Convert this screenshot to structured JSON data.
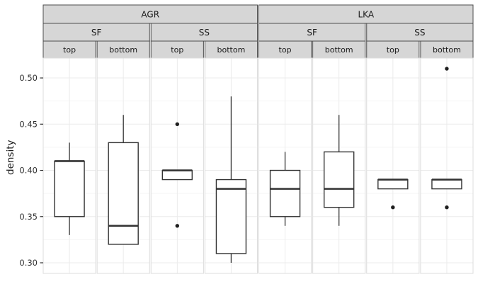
{
  "chart_data": {
    "type": "boxplot",
    "ylabel": "density",
    "ylim": [
      0.2885,
      0.5215
    ],
    "y_ticks": [
      {
        "value": 0.5,
        "label": "0.50"
      },
      {
        "value": 0.45,
        "label": "0.45"
      },
      {
        "value": 0.4,
        "label": "0.40"
      },
      {
        "value": 0.35,
        "label": "0.35"
      },
      {
        "value": 0.3,
        "label": "0.30"
      }
    ],
    "y_minor_ticks": [
      0.325,
      0.375,
      0.425,
      0.475
    ],
    "grid": true,
    "facet_strips": {
      "row1": [
        {
          "label": "AGR",
          "span": 4
        },
        {
          "label": "LKA",
          "span": 4
        }
      ],
      "row2": [
        {
          "label": "SF",
          "span": 2
        },
        {
          "label": "SS",
          "span": 2
        },
        {
          "label": "SF",
          "span": 2
        },
        {
          "label": "SS",
          "span": 2
        }
      ],
      "row3": [
        {
          "label": "top",
          "span": 1
        },
        {
          "label": "bottom",
          "span": 1
        },
        {
          "label": "top",
          "span": 1
        },
        {
          "label": "bottom",
          "span": 1
        },
        {
          "label": "top",
          "span": 1
        },
        {
          "label": "bottom",
          "span": 1
        },
        {
          "label": "top",
          "span": 1
        },
        {
          "label": "bottom",
          "span": 1
        }
      ]
    },
    "panels": [
      {
        "facet1": "AGR",
        "facet2": "SF",
        "facet3": "top",
        "whisker_low": 0.33,
        "q1": 0.35,
        "median": 0.41,
        "q3": 0.41,
        "whisker_high": 0.43,
        "outliers": []
      },
      {
        "facet1": "AGR",
        "facet2": "SF",
        "facet3": "bottom",
        "whisker_low": 0.32,
        "q1": 0.32,
        "median": 0.34,
        "q3": 0.43,
        "whisker_high": 0.46,
        "outliers": []
      },
      {
        "facet1": "AGR",
        "facet2": "SS",
        "facet3": "top",
        "whisker_low": 0.39,
        "q1": 0.39,
        "median": 0.4,
        "q3": 0.4,
        "whisker_high": 0.4,
        "outliers": [
          0.45,
          0.34
        ]
      },
      {
        "facet1": "AGR",
        "facet2": "SS",
        "facet3": "bottom",
        "whisker_low": 0.3,
        "q1": 0.31,
        "median": 0.38,
        "q3": 0.39,
        "whisker_high": 0.48,
        "outliers": []
      },
      {
        "facet1": "LKA",
        "facet2": "SF",
        "facet3": "top",
        "whisker_low": 0.34,
        "q1": 0.35,
        "median": 0.38,
        "q3": 0.4,
        "whisker_high": 0.42,
        "outliers": []
      },
      {
        "facet1": "LKA",
        "facet2": "SF",
        "facet3": "bottom",
        "whisker_low": 0.34,
        "q1": 0.36,
        "median": 0.38,
        "q3": 0.42,
        "whisker_high": 0.46,
        "outliers": []
      },
      {
        "facet1": "LKA",
        "facet2": "SS",
        "facet3": "top",
        "whisker_low": 0.38,
        "q1": 0.38,
        "median": 0.39,
        "q3": 0.39,
        "whisker_high": 0.39,
        "outliers": [
          0.36
        ]
      },
      {
        "facet1": "LKA",
        "facet2": "SS",
        "facet3": "bottom",
        "whisker_low": 0.38,
        "q1": 0.38,
        "median": 0.39,
        "q3": 0.39,
        "whisker_high": 0.39,
        "outliers": [
          0.51,
          0.36
        ]
      }
    ],
    "colors": {
      "background": "#ffffff",
      "strip_fill": "#d6d6d6",
      "strip_border": "#4d4d4d",
      "strip_text": "#1a1a1a",
      "panel_fill": "#ffffff",
      "panel_border": "#dcdcdc",
      "grid_major": "#ebebeb",
      "grid_minor": "#f5f5f5",
      "box_stroke": "#333333",
      "box_fill": "#ffffff",
      "outlier": "#1f1f1f",
      "axis_text": "#303030",
      "tick_mark": "#333333"
    }
  }
}
